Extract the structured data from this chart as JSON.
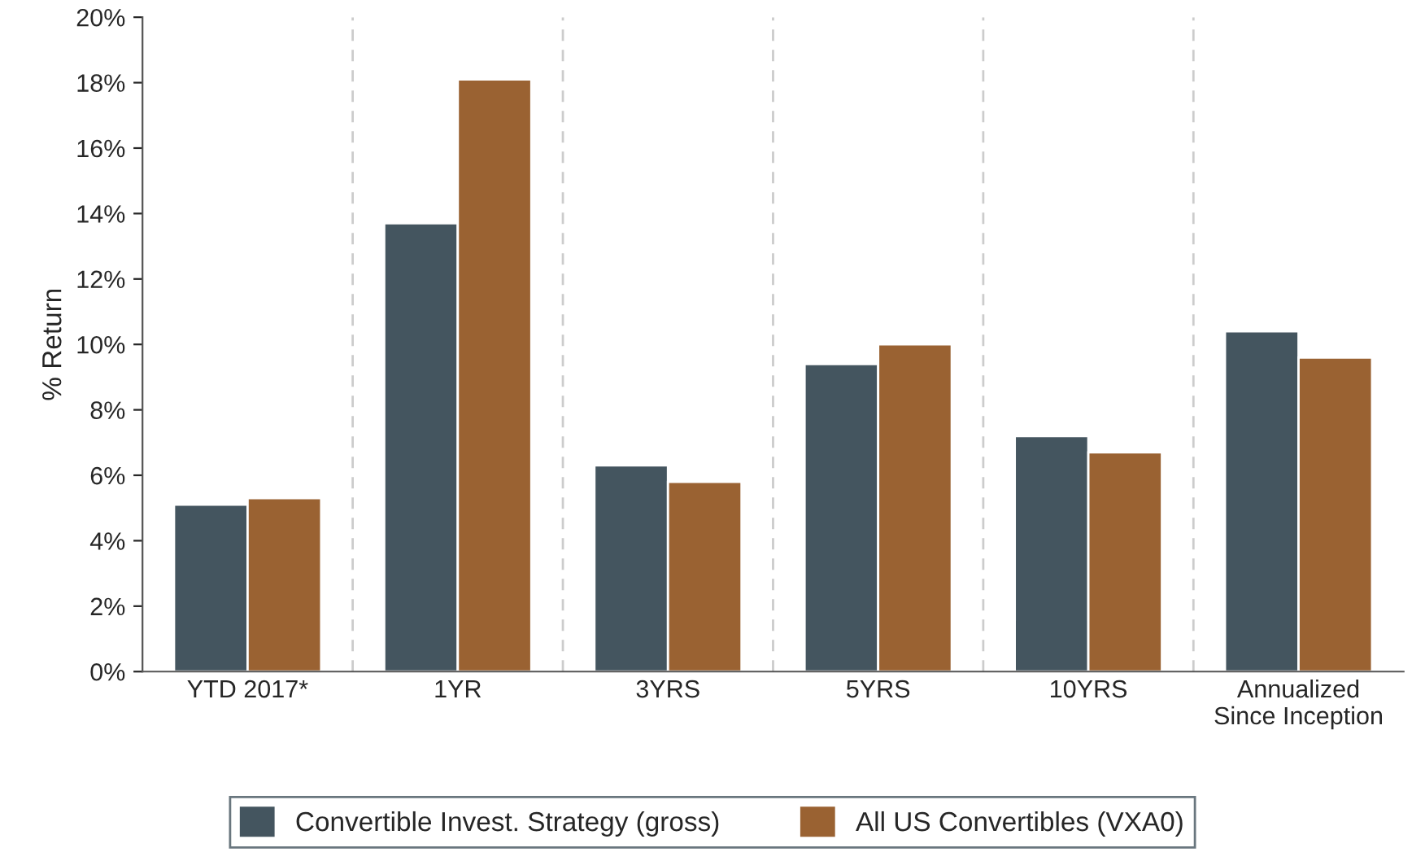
{
  "chart_data": {
    "type": "bar",
    "ylabel": "% Return",
    "categories": [
      "YTD 2017*",
      "1YR",
      "3YRS",
      "5YRS",
      "10YRS",
      "Annualized\nSince Inception"
    ],
    "series": [
      {
        "name": "Convertible Invest. Strategy (gross)",
        "color": "#44555f",
        "values": [
          5.1,
          13.7,
          6.3,
          9.4,
          7.2,
          10.4
        ]
      },
      {
        "name": "All US Convertibles (VXA0)",
        "color": "#9a6232",
        "values": [
          5.3,
          18.1,
          5.8,
          10.0,
          6.7,
          9.6
        ]
      }
    ],
    "ylim": [
      0,
      20
    ],
    "yticks": [
      {
        "value": 0,
        "label": "0%"
      },
      {
        "value": 2,
        "label": "2%"
      },
      {
        "value": 4,
        "label": "4%"
      },
      {
        "value": 6,
        "label": "6%"
      },
      {
        "value": 8,
        "label": "8%"
      },
      {
        "value": 10,
        "label": "10%"
      },
      {
        "value": 12,
        "label": "12%"
      },
      {
        "value": 14,
        "label": "14%"
      },
      {
        "value": 16,
        "label": "16%"
      },
      {
        "value": 18,
        "label": "18%"
      },
      {
        "value": 20,
        "label": "20%"
      }
    ],
    "grid": "x",
    "legend": "bottom"
  }
}
